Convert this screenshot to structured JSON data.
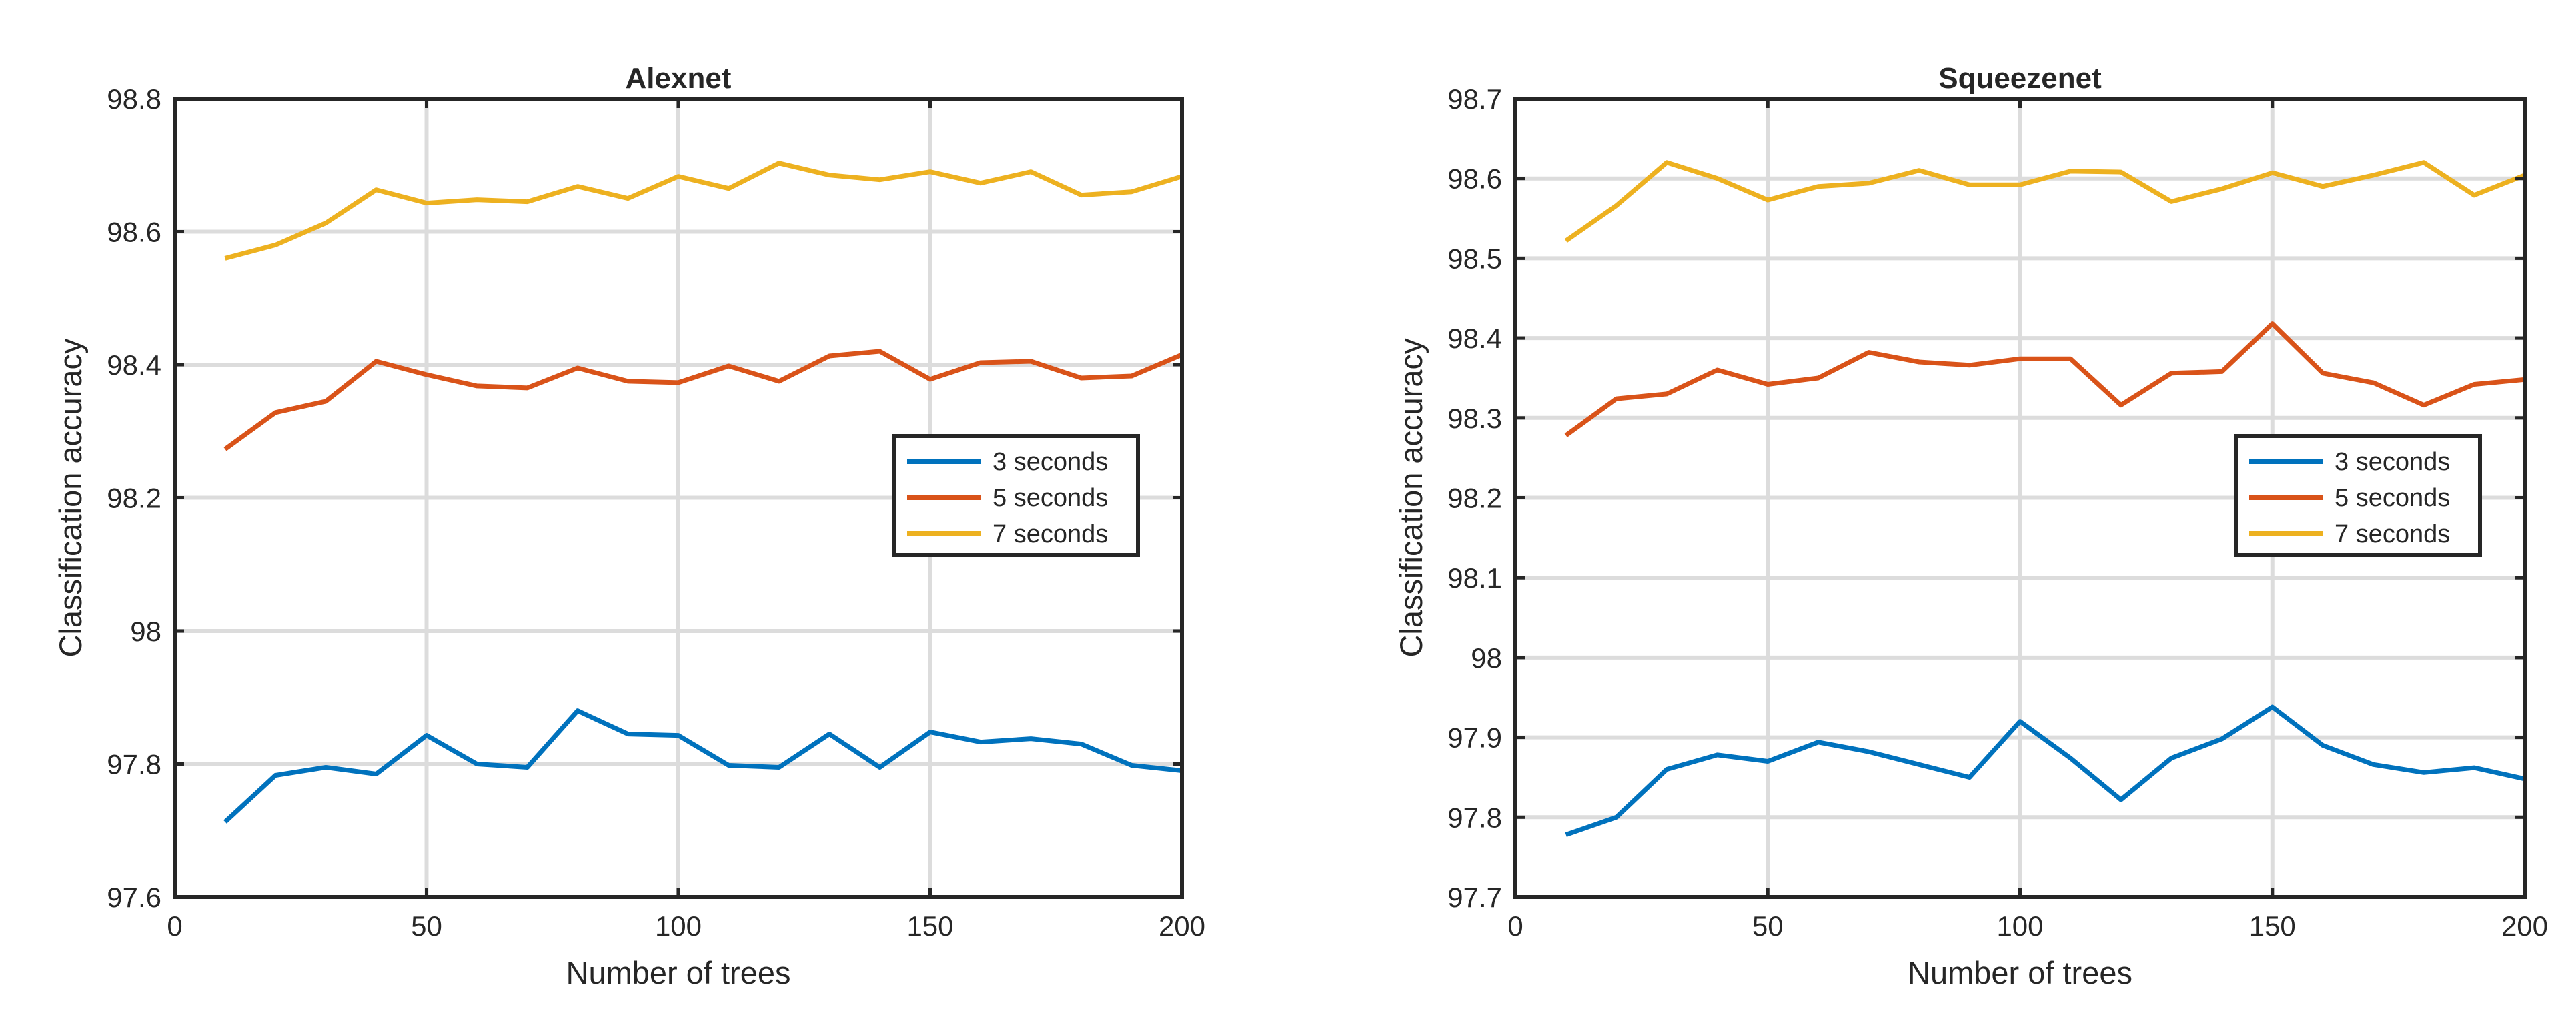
{
  "chart_data": [
    {
      "type": "line",
      "title": "Alexnet",
      "xlabel": "Number of trees",
      "ylabel": "Classification accuracy",
      "xlim": [
        0,
        200
      ],
      "ylim": [
        97.6,
        98.8
      ],
      "xticks": [
        0,
        50,
        100,
        150,
        200
      ],
      "xtick_labels": [
        "0",
        "50",
        "100",
        "150",
        "200"
      ],
      "yticks": [
        97.6,
        97.8,
        98,
        98.2,
        98.4,
        98.6,
        98.8
      ],
      "ytick_labels": [
        "97.6",
        "97.8",
        "98",
        "98.2",
        "98.4",
        "98.6",
        "98.8"
      ],
      "grid": true,
      "legend_position": "center-right",
      "x": [
        10,
        20,
        30,
        40,
        50,
        60,
        70,
        80,
        90,
        100,
        110,
        120,
        130,
        140,
        150,
        160,
        170,
        180,
        190,
        200
      ],
      "series": [
        {
          "name": "3 seconds",
          "color": "#0072BD",
          "values": [
            97.713,
            97.783,
            97.795,
            97.785,
            97.843,
            97.8,
            97.795,
            97.88,
            97.845,
            97.843,
            97.798,
            97.795,
            97.845,
            97.795,
            97.848,
            97.833,
            97.838,
            97.83,
            97.798,
            97.79
          ]
        },
        {
          "name": "5 seconds",
          "color": "#D95319",
          "values": [
            98.273,
            98.328,
            98.345,
            98.405,
            98.385,
            98.368,
            98.365,
            98.395,
            98.375,
            98.373,
            98.398,
            98.375,
            98.413,
            98.42,
            98.378,
            98.403,
            98.405,
            98.38,
            98.383,
            98.415
          ]
        },
        {
          "name": "7 seconds",
          "color": "#EDB120",
          "values": [
            98.56,
            98.58,
            98.613,
            98.663,
            98.643,
            98.648,
            98.645,
            98.668,
            98.65,
            98.683,
            98.665,
            98.703,
            98.685,
            98.678,
            98.69,
            98.673,
            98.69,
            98.655,
            98.66,
            98.683
          ]
        }
      ]
    },
    {
      "type": "line",
      "title": "Squeezenet",
      "xlabel": "Number of trees",
      "ylabel": "Classification accuracy",
      "xlim": [
        0,
        200
      ],
      "ylim": [
        97.7,
        98.7
      ],
      "xticks": [
        0,
        50,
        100,
        150,
        200
      ],
      "xtick_labels": [
        "0",
        "50",
        "100",
        "150",
        "200"
      ],
      "yticks": [
        97.7,
        97.8,
        97.9,
        98,
        98.1,
        98.2,
        98.3,
        98.4,
        98.5,
        98.6,
        98.7
      ],
      "ytick_labels": [
        "97.7",
        "97.8",
        "97.9",
        "98",
        "98.1",
        "98.2",
        "98.3",
        "98.4",
        "98.5",
        "98.6",
        "98.7"
      ],
      "grid": true,
      "legend_position": "center-right",
      "x": [
        10,
        20,
        30,
        40,
        50,
        60,
        70,
        80,
        90,
        100,
        110,
        120,
        130,
        140,
        150,
        160,
        170,
        180,
        190,
        200
      ],
      "series": [
        {
          "name": "3 seconds",
          "color": "#0072BD",
          "values": [
            97.778,
            97.8,
            97.86,
            97.878,
            97.87,
            97.894,
            97.882,
            97.866,
            97.85,
            97.92,
            97.874,
            97.822,
            97.874,
            97.898,
            97.938,
            97.89,
            97.866,
            97.856,
            97.862,
            97.848
          ]
        },
        {
          "name": "5 seconds",
          "color": "#D95319",
          "values": [
            98.278,
            98.324,
            98.33,
            98.36,
            98.342,
            98.35,
            98.382,
            98.37,
            98.366,
            98.374,
            98.374,
            98.316,
            98.356,
            98.358,
            98.418,
            98.356,
            98.344,
            98.316,
            98.342,
            98.348
          ]
        },
        {
          "name": "7 seconds",
          "color": "#EDB120",
          "values": [
            98.522,
            98.566,
            98.62,
            98.6,
            98.573,
            98.59,
            98.594,
            98.61,
            98.592,
            98.592,
            98.609,
            98.608,
            98.571,
            98.587,
            98.607,
            98.59,
            98.604,
            98.62,
            98.579,
            98.604
          ]
        }
      ]
    }
  ]
}
